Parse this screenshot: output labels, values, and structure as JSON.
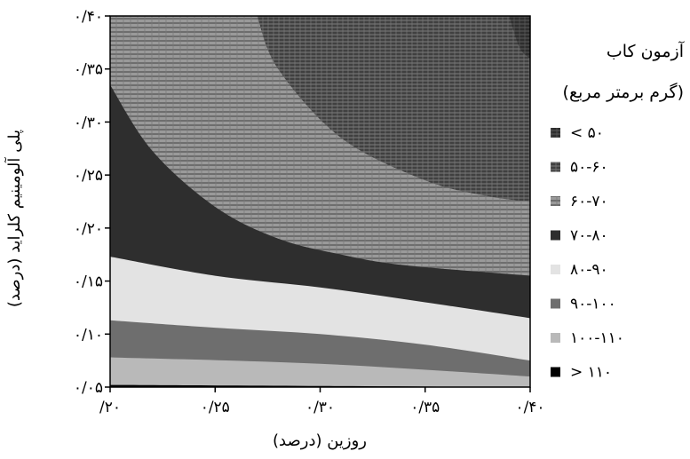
{
  "chart_data": {
    "type": "contour",
    "xlabel": "روزین (درصد)",
    "ylabel": "پلی آلومینیم کلراید (درصد)",
    "x_ticks": [
      "/۲۰",
      "۰/۲۵",
      "۰/۳۰",
      "۰/۳۵",
      "۰/۴۰"
    ],
    "y_ticks": [
      "۰/۰۵",
      "۰/۱۰",
      "۰/۱۵",
      "۰/۲۰",
      "۰/۲۵",
      "۰/۳۰",
      "۰/۳۵",
      "۰/۴۰"
    ],
    "xlim": [
      0.2,
      0.4
    ],
    "ylim": [
      0.05,
      0.4
    ],
    "legend": {
      "title_line1": "آزمون کاب",
      "title_line2": "(گرم برمتر مربع)",
      "placement": "right"
    },
    "levels": [
      {
        "label": "< ۵۰",
        "color": "#3f3f3f",
        "pattern": "hatch-dark"
      },
      {
        "label": "۵۰-۶۰",
        "color": "#5a5a5a",
        "pattern": "hatch-medium"
      },
      {
        "label": "۶۰-۷۰",
        "color": "#8a8a8a",
        "pattern": "hatch-light"
      },
      {
        "label": "۷۰-۸۰",
        "color": "#2e2e2e",
        "pattern": "solid"
      },
      {
        "label": "۸۰-۹۰",
        "color": "#e3e3e3",
        "pattern": "solid"
      },
      {
        "label": "۹۰-۱۰۰",
        "color": "#6e6e6e",
        "pattern": "solid"
      },
      {
        "label": "۱۰۰-۱۱۰",
        "color": "#b9b9b9",
        "pattern": "solid"
      },
      {
        "label": "> ۱۱۰",
        "color": "#000000",
        "pattern": "solid"
      }
    ],
    "boundaries": [
      {
        "between": [
          "۱۰۰-۱۱۰",
          "> ۱۱۰"
        ],
        "points": [
          [
            0.2,
            0.052
          ],
          [
            0.3,
            0.051
          ],
          [
            0.4,
            0.05
          ]
        ]
      },
      {
        "between": [
          "۹۰-۱۰۰",
          "۱۰۰-۱۱۰"
        ],
        "points": [
          [
            0.2,
            0.078
          ],
          [
            0.3,
            0.072
          ],
          [
            0.4,
            0.06
          ]
        ]
      },
      {
        "between": [
          "۸۰-۹۰",
          "۹۰-۱۰۰"
        ],
        "points": [
          [
            0.2,
            0.113
          ],
          [
            0.25,
            0.106
          ],
          [
            0.3,
            0.1
          ],
          [
            0.35,
            0.09
          ],
          [
            0.4,
            0.075
          ]
        ]
      },
      {
        "between": [
          "۷۰-۸۰",
          "۸۰-۹۰"
        ],
        "points": [
          [
            0.2,
            0.173
          ],
          [
            0.25,
            0.155
          ],
          [
            0.3,
            0.144
          ],
          [
            0.35,
            0.13
          ],
          [
            0.4,
            0.115
          ]
        ]
      },
      {
        "between": [
          "۶۰-۷۰",
          "۷۰-۸۰"
        ],
        "points": [
          [
            0.2,
            0.335
          ],
          [
            0.22,
            0.273
          ],
          [
            0.25,
            0.22
          ],
          [
            0.28,
            0.19
          ],
          [
            0.31,
            0.175
          ],
          [
            0.34,
            0.165
          ],
          [
            0.4,
            0.155
          ]
        ]
      },
      {
        "between": [
          "۵۰-۶۰",
          "۶۰-۷۰"
        ],
        "points": [
          [
            0.27,
            0.4
          ],
          [
            0.28,
            0.35
          ],
          [
            0.31,
            0.285
          ],
          [
            0.35,
            0.245
          ],
          [
            0.38,
            0.23
          ],
          [
            0.4,
            0.225
          ]
        ]
      },
      {
        "between": [
          "< ۵۰",
          "۵۰-۶۰"
        ],
        "points": [
          [
            0.39,
            0.4
          ],
          [
            0.395,
            0.37
          ],
          [
            0.4,
            0.36
          ]
        ]
      }
    ]
  }
}
